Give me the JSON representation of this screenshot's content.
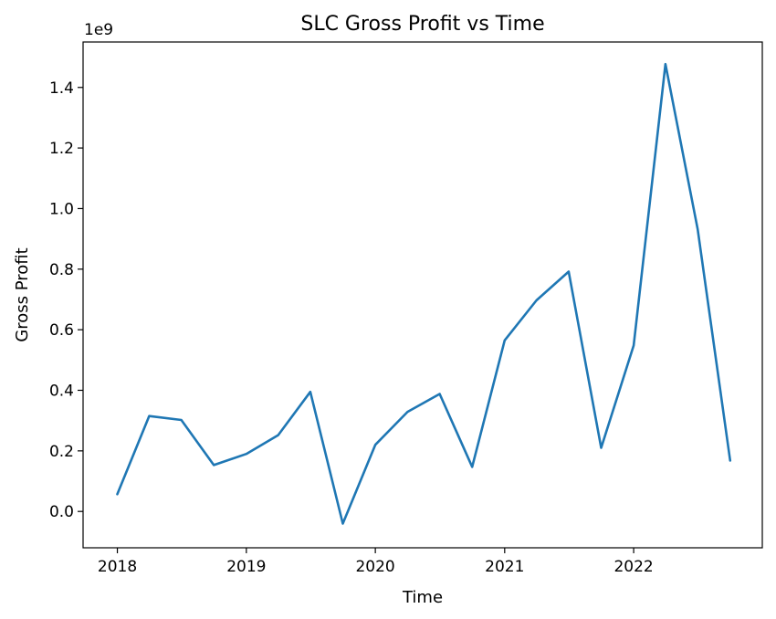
{
  "chart_data": {
    "type": "line",
    "title": "SLC Gross Profit vs Time",
    "xlabel": "Time",
    "ylabel": "Gross Profit",
    "y_offset_label": "1e9",
    "grid": false,
    "xlim": [
      "2017-09-26",
      "2022-12-31"
    ],
    "ylim": [
      -0.12,
      1.55
    ],
    "x_ticks": [
      "2018-01-01",
      "2019-01-01",
      "2020-01-01",
      "2021-01-01",
      "2022-01-01"
    ],
    "x_tick_labels": [
      "2018",
      "2019",
      "2020",
      "2021",
      "2022"
    ],
    "y_ticks": [
      0.0,
      0.2,
      0.4,
      0.6,
      0.8,
      1.0,
      1.2,
      1.4
    ],
    "y_tick_labels": [
      "0.0",
      "0.2",
      "0.4",
      "0.6",
      "0.8",
      "1.0",
      "1.2",
      "1.4"
    ],
    "series": [
      {
        "color": "#1f77b4",
        "x": [
          "2018-01-01",
          "2018-04-01",
          "2018-07-01",
          "2018-10-01",
          "2019-01-01",
          "2019-04-01",
          "2019-07-01",
          "2019-10-01",
          "2020-01-01",
          "2020-04-01",
          "2020-07-01",
          "2020-10-01",
          "2021-01-01",
          "2021-04-01",
          "2021-07-01",
          "2021-10-01",
          "2022-01-01",
          "2022-04-01",
          "2022-07-01",
          "2022-10-01"
        ],
        "values": [
          0.057,
          0.315,
          0.302,
          0.153,
          0.19,
          0.252,
          0.395,
          -0.04,
          0.22,
          0.329,
          0.388,
          0.147,
          0.565,
          0.697,
          0.792,
          0.21,
          0.548,
          1.477,
          0.932,
          0.168
        ]
      }
    ]
  }
}
